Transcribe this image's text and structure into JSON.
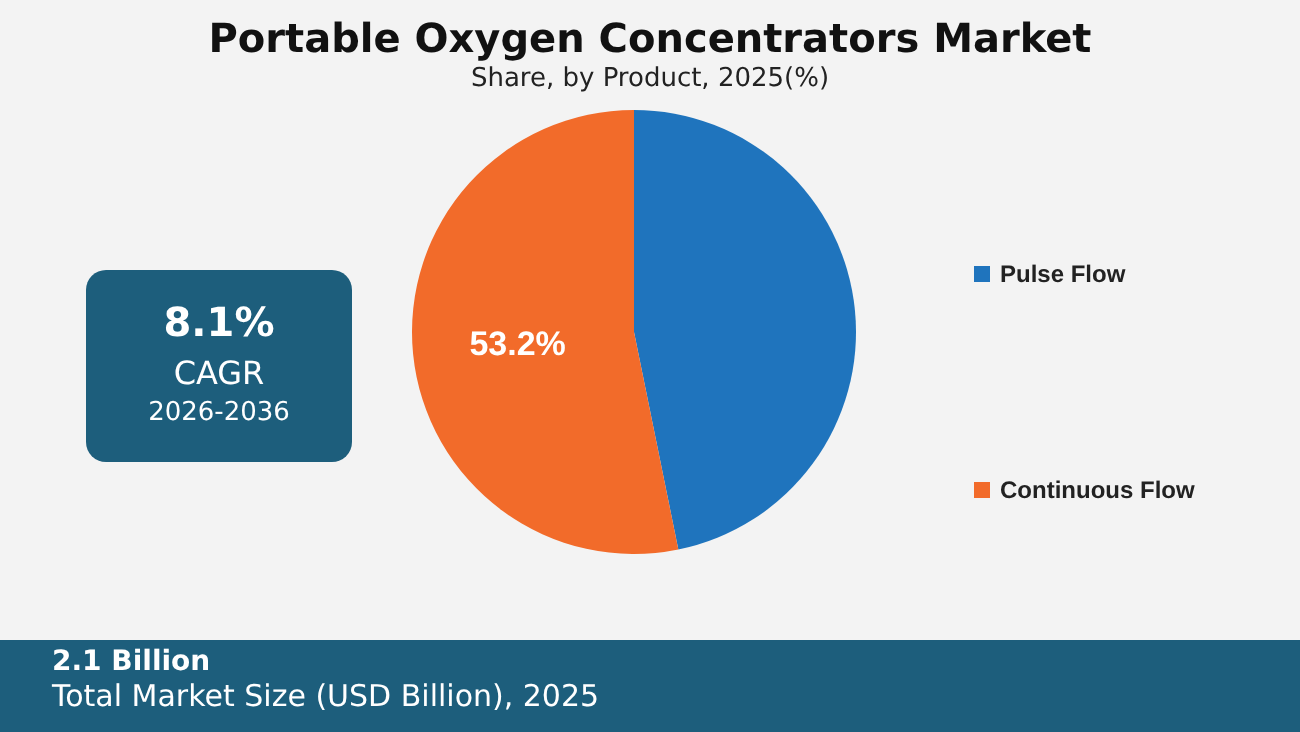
{
  "chart_data": {
    "type": "pie",
    "title": "Portable Oxygen Concentrators Market",
    "subtitle": "Share, by Product, 2025(%)",
    "categories": [
      "Pulse Flow",
      "Continuous Flow"
    ],
    "values": [
      46.8,
      53.2
    ],
    "colors": [
      "#1f74bd",
      "#f26b2a"
    ],
    "value_labels": [
      null,
      "53.2%"
    ],
    "legend": "right",
    "annotations": [
      "8.1%",
      "CAGR",
      "2026-2036",
      "2.1 Billion",
      "Total Market Size (USD Billion), 2025"
    ]
  }
}
